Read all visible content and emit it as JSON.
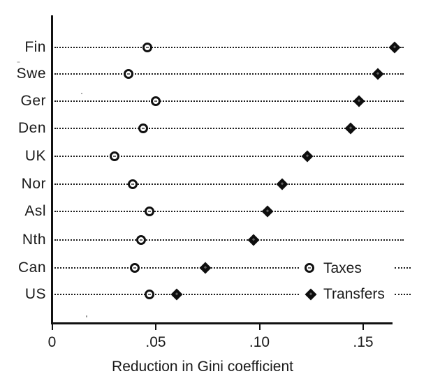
{
  "chart_data": {
    "type": "scatter",
    "subtype": "dot-plot",
    "title": "",
    "xlabel": "Reduction in Gini coefficient",
    "ylabel": "",
    "categories": [
      "Fin",
      "Swe",
      "Ger",
      "Den",
      "UK",
      "Nor",
      "Asl",
      "Nth",
      "Can",
      "US"
    ],
    "series": [
      {
        "name": "Taxes",
        "marker": "open-circle",
        "values": [
          0.046,
          0.037,
          0.05,
          0.044,
          0.03,
          0.039,
          0.047,
          0.043,
          0.04,
          0.047
        ]
      },
      {
        "name": "Transfers",
        "marker": "filled-diamond",
        "values": [
          0.165,
          0.157,
          0.148,
          0.144,
          0.123,
          0.111,
          0.104,
          0.097,
          0.074,
          0.06
        ]
      }
    ],
    "x_ticks": [
      {
        "value": 0,
        "label": "0"
      },
      {
        "value": 0.05,
        "label": ".05"
      },
      {
        "value": 0.1,
        "label": ".10"
      },
      {
        "value": 0.15,
        "label": ".15"
      }
    ],
    "xlim": [
      0,
      0.172
    ],
    "grid": "dotted horizontal leader line across each category row",
    "legend": {
      "position": "inside plot, right side, aligned with Can and US rows",
      "entries": [
        {
          "label": "Taxes",
          "marker": "open-circle"
        },
        {
          "label": "Transfers",
          "marker": "filled-diamond"
        }
      ]
    }
  },
  "colors": {
    "background": "#ffffff",
    "text": "#1a1a1a",
    "dotted_line": "#1c1c1c",
    "marker": "#0e0e0e"
  }
}
